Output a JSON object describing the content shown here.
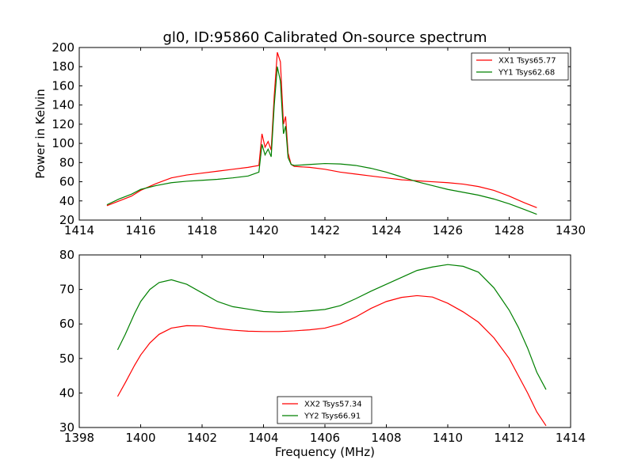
{
  "chart_data": [
    {
      "type": "line",
      "title": "gl0, ID:95860 Calibrated On-source spectrum",
      "xlabel": "",
      "ylabel": "Power in Kelvin",
      "xlim": [
        1414,
        1430
      ],
      "ylim": [
        20,
        200
      ],
      "xticks": [
        1414,
        1416,
        1418,
        1420,
        1422,
        1424,
        1426,
        1428,
        1430
      ],
      "yticks": [
        20,
        40,
        60,
        80,
        100,
        120,
        140,
        160,
        180,
        200
      ],
      "legend_position": "top-right",
      "series": [
        {
          "name": "XX1 Tsys65.77",
          "color": "#ff0000",
          "x": [
            1414.9,
            1415.3,
            1415.7,
            1416.0,
            1416.5,
            1417.0,
            1417.5,
            1418.0,
            1418.5,
            1419.0,
            1419.5,
            1419.85,
            1419.95,
            1420.05,
            1420.15,
            1420.25,
            1420.35,
            1420.45,
            1420.55,
            1420.65,
            1420.72,
            1420.8,
            1420.9,
            1421.0,
            1421.5,
            1422.0,
            1422.5,
            1423.0,
            1423.5,
            1424.0,
            1424.5,
            1425.0,
            1425.5,
            1426.0,
            1426.5,
            1427.0,
            1427.5,
            1428.0,
            1428.5,
            1428.9
          ],
          "y": [
            35,
            40,
            45,
            51,
            58,
            64,
            67,
            69,
            71,
            73,
            75,
            77,
            110,
            96,
            102,
            93,
            150,
            195,
            185,
            120,
            128,
            90,
            78,
            76,
            75,
            73,
            70,
            68,
            66,
            64,
            62,
            61,
            60,
            59,
            57.5,
            55,
            51,
            45,
            38,
            33
          ]
        },
        {
          "name": "YY1 Tsys62.68",
          "color": "#008000",
          "x": [
            1414.9,
            1415.3,
            1415.7,
            1416.0,
            1416.5,
            1417.0,
            1417.5,
            1418.0,
            1418.5,
            1419.0,
            1419.5,
            1419.85,
            1419.95,
            1420.05,
            1420.15,
            1420.25,
            1420.35,
            1420.45,
            1420.55,
            1420.65,
            1420.72,
            1420.8,
            1420.9,
            1421.0,
            1421.5,
            1422.0,
            1422.5,
            1423.0,
            1423.5,
            1424.0,
            1424.5,
            1425.0,
            1425.5,
            1426.0,
            1426.5,
            1427.0,
            1427.5,
            1428.0,
            1428.5,
            1428.9
          ],
          "y": [
            36,
            42,
            47,
            52,
            56,
            59,
            60.5,
            61.5,
            62.5,
            64,
            66,
            70,
            99,
            88,
            94,
            86,
            140,
            180,
            165,
            110,
            118,
            85,
            78,
            77,
            78,
            79,
            78.5,
            77,
            74,
            70,
            65,
            60,
            56,
            52,
            49,
            46,
            42,
            37,
            31,
            26
          ]
        }
      ]
    },
    {
      "type": "line",
      "title": "",
      "xlabel": "Frequency (MHz)",
      "ylabel": "",
      "xlim": [
        1398,
        1414
      ],
      "ylim": [
        30,
        80
      ],
      "xticks": [
        1398,
        1400,
        1402,
        1404,
        1406,
        1408,
        1410,
        1412,
        1414
      ],
      "yticks": [
        30,
        40,
        50,
        60,
        70,
        80
      ],
      "legend_position": "lower-center",
      "series": [
        {
          "name": "XX2 Tsys57.34",
          "color": "#ff0000",
          "x": [
            1399.25,
            1399.5,
            1399.8,
            1400.0,
            1400.3,
            1400.6,
            1401.0,
            1401.5,
            1402.0,
            1402.5,
            1403.0,
            1403.5,
            1404.0,
            1404.5,
            1405.0,
            1405.5,
            1406.0,
            1406.5,
            1407.0,
            1407.5,
            1408.0,
            1408.5,
            1409.0,
            1409.5,
            1410.0,
            1410.5,
            1411.0,
            1411.5,
            1412.0,
            1412.3,
            1412.6,
            1412.9,
            1413.2
          ],
          "y": [
            39,
            43,
            48,
            51,
            54.5,
            57,
            58.8,
            59.5,
            59.4,
            58.7,
            58.2,
            57.9,
            57.8,
            57.8,
            58,
            58.3,
            58.8,
            60,
            62,
            64.5,
            66.5,
            67.7,
            68.2,
            67.8,
            66,
            63.5,
            60.5,
            56,
            50,
            45,
            40,
            34.5,
            30.5
          ]
        },
        {
          "name": "YY2 Tsys66.91",
          "color": "#008000",
          "x": [
            1399.25,
            1399.5,
            1399.8,
            1400.0,
            1400.3,
            1400.6,
            1401.0,
            1401.5,
            1402.0,
            1402.5,
            1403.0,
            1403.5,
            1404.0,
            1404.5,
            1405.0,
            1405.5,
            1406.0,
            1406.5,
            1407.0,
            1407.5,
            1408.0,
            1408.5,
            1409.0,
            1409.5,
            1410.0,
            1410.5,
            1411.0,
            1411.5,
            1412.0,
            1412.3,
            1412.6,
            1412.9,
            1413.2
          ],
          "y": [
            52.5,
            57,
            63,
            66.5,
            70,
            72,
            72.8,
            71.5,
            69,
            66.5,
            65,
            64.3,
            63.6,
            63.4,
            63.5,
            63.8,
            64.2,
            65.3,
            67.3,
            69.5,
            71.5,
            73.5,
            75.5,
            76.5,
            77.2,
            76.7,
            75,
            70.5,
            64,
            59,
            53,
            46,
            41
          ]
        }
      ]
    }
  ]
}
